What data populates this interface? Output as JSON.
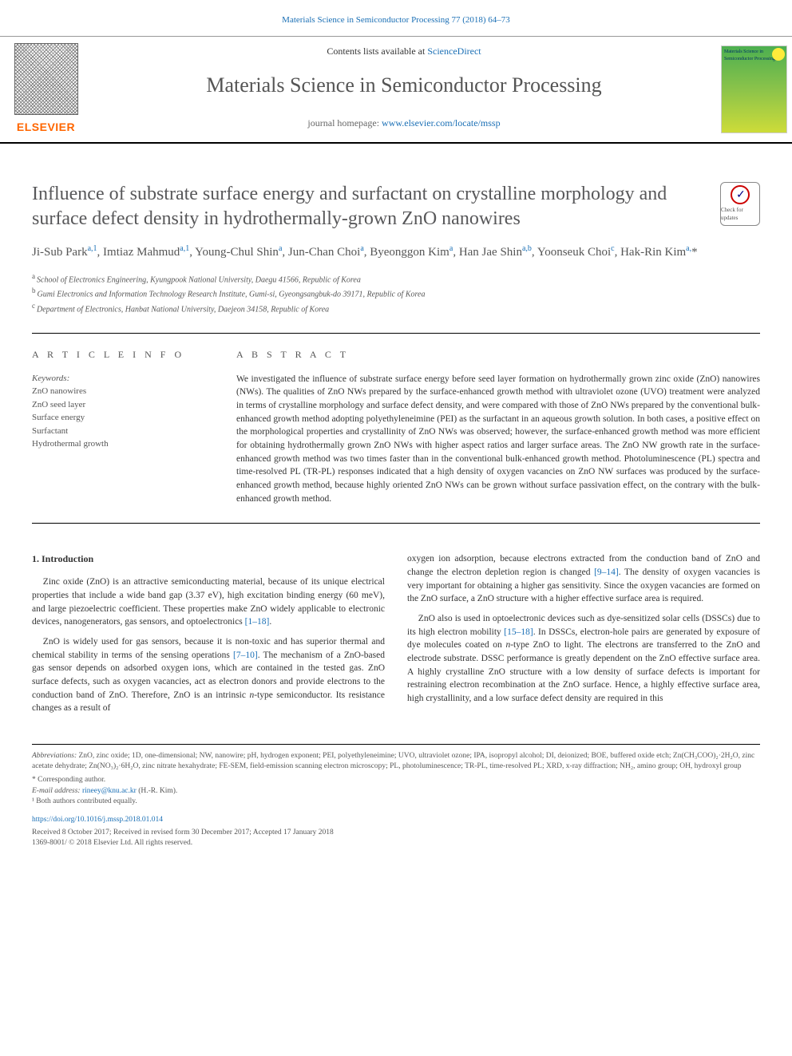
{
  "header_link": "Materials Science in Semiconductor Processing 77 (2018) 64–73",
  "masthead": {
    "elsevier": "ELSEVIER",
    "contents_prefix": "Contents lists available at ",
    "contents_link": "ScienceDirect",
    "journal_name": "Materials Science in Semiconductor Processing",
    "homepage_prefix": "journal homepage: ",
    "homepage_link": "www.elsevier.com/locate/mssp",
    "cover_text": "Materials Science in Semiconductor Processing"
  },
  "crossmark": "Check for updates",
  "title": "Influence of substrate surface energy and surfactant on crystalline morphology and surface defect density in hydrothermally-grown ZnO nanowires",
  "authors_html": "Ji-Sub Park<sup>a,1</sup>, Imtiaz Mahmud<sup>a,1</sup>, Young-Chul Shin<sup>a</sup>, Jun-Chan Choi<sup>a</sup>, Byeonggon Kim<sup>a</sup>, Han Jae Shin<sup>a,b</sup>, Yoonseuk Choi<sup>c</sup>, Hak-Rin Kim<sup>a,</sup><span class='star'>*</span>",
  "affiliations": [
    {
      "sup": "a",
      "text": "School of Electronics Engineering, Kyungpook National University, Daegu 41566, Republic of Korea"
    },
    {
      "sup": "b",
      "text": "Gumi Electronics and Information Technology Research Institute, Gumi-si, Gyeongsangbuk-do 39171, Republic of Korea"
    },
    {
      "sup": "c",
      "text": "Department of Electronics, Hanbat National University, Daejeon 34158, Republic of Korea"
    }
  ],
  "article_info_head": "A R T I C L E   I N F O",
  "abstract_head": "A B S T R A C T",
  "keywords_label": "Keywords:",
  "keywords": [
    "ZnO nanowires",
    "ZnO seed layer",
    "Surface energy",
    "Surfactant",
    "Hydrothermal growth"
  ],
  "abstract": "We investigated the influence of substrate surface energy before seed layer formation on hydrothermally grown zinc oxide (ZnO) nanowires (NWs). The qualities of ZnO NWs prepared by the surface-enhanced growth method with ultraviolet ozone (UVO) treatment were analyzed in terms of crystalline morphology and surface defect density, and were compared with those of ZnO NWs prepared by the conventional bulk-enhanced growth method adopting polyethyleneimine (PEI) as the surfactant in an aqueous growth solution. In both cases, a positive effect on the morphological properties and crystallinity of ZnO NWs was observed; however, the surface-enhanced growth method was more efficient for obtaining hydrothermally grown ZnO NWs with higher aspect ratios and larger surface areas. The ZnO NW growth rate in the surface-enhanced growth method was two times faster than in the conventional bulk-enhanced growth method. Photoluminescence (PL) spectra and time-resolved PL (TR-PL) responses indicated that a high density of oxygen vacancies on ZnO NW surfaces was produced by the surface-enhanced growth method, because highly oriented ZnO NWs can be grown without surface passivation effect, on the contrary with the bulk-enhanced growth method.",
  "section1_head": "1. Introduction",
  "col1": {
    "p1_a": "Zinc oxide (ZnO) is an attractive semiconducting material, because of its unique electrical properties that include a wide band gap (3.37 eV), high excitation binding energy (60 meV), and large piezoelectric coefficient. These properties make ZnO widely applicable to electronic devices, nanogenerators, gas sensors, and optoelectronics ",
    "p1_cite": "[1–18]",
    "p1_b": ".",
    "p2_a": "ZnO is widely used for gas sensors, because it is non-toxic and has superior thermal and chemical stability in terms of the sensing operations ",
    "p2_cite": "[7–10]",
    "p2_b": ". The mechanism of a ZnO-based gas sensor depends on adsorbed oxygen ions, which are contained in the tested gas. ZnO surface defects, such as oxygen vacancies, act as electron donors and provide electrons to the conduction band of ZnO. Therefore, ZnO is an intrinsic ",
    "p2_ital": "n",
    "p2_c": "-type semiconductor. Its resistance changes as a result of"
  },
  "col2": {
    "p1_a": "oxygen ion adsorption, because electrons extracted from the conduction band of ZnO and change the electron depletion region is changed ",
    "p1_cite": "[9–14]",
    "p1_b": ". The density of oxygen vacancies is very important for obtaining a higher gas sensitivity. Since the oxygen vacancies are formed on the ZnO surface, a ZnO structure with a higher effective surface area is required.",
    "p2_a": "ZnO also is used in optoelectronic devices such as dye-sensitized solar cells (DSSCs) due to its high electron mobility ",
    "p2_cite": "[15–18]",
    "p2_b": ". In DSSCs, electron-hole pairs are generated by exposure of dye molecules coated on ",
    "p2_ital": "n",
    "p2_c": "-type ZnO to light. The electrons are transferred to the ZnO and electrode substrate. DSSC performance is greatly dependent on the ZnO effective surface area. A highly crystalline ZnO structure with a low density of surface defects is important for restraining electron recombination at the ZnO surface. Hence, a highly effective surface area, high crystallinity, and a low surface defect density are required in this"
  },
  "footer": {
    "abbr_label": "Abbreviations:",
    "abbr_text": " ZnO, zinc oxide; 1D, one-dimensional; NW, nanowire; pH, hydrogen exponent; PEI, polyethyleneimine; UVO, ultraviolet ozone; IPA, isopropyl alcohol; DI, deionized; BOE, buffered oxide etch; Zn(CH₃COO)₂·2H₂O, zinc acetate dehydrate; Zn(NO₃)₂·6H₂O, zinc nitrate hexahydrate; FE-SEM, field-emission scanning electron microscopy; PL, photoluminescence; TR-PL, time-resolved PL; XRD, x-ray diffraction; NH₂, amino group; OH, hydroxyl group",
    "corr": "* Corresponding author.",
    "email_label": "E-mail address:",
    "email": " rineey@knu.ac.kr",
    "email_after": " (H.-R. Kim).",
    "equal": "¹ Both authors contributed equally.",
    "doi": "https://doi.org/10.1016/j.mssp.2018.01.014",
    "dates": "Received 8 October 2017; Received in revised form 30 December 2017; Accepted 17 January 2018",
    "copyright": "1369-8001/ © 2018 Elsevier Ltd. All rights reserved."
  },
  "colors": {
    "link": "#1a6fb5",
    "elsevier_orange": "#ff6600",
    "title_gray": "#58585a"
  }
}
